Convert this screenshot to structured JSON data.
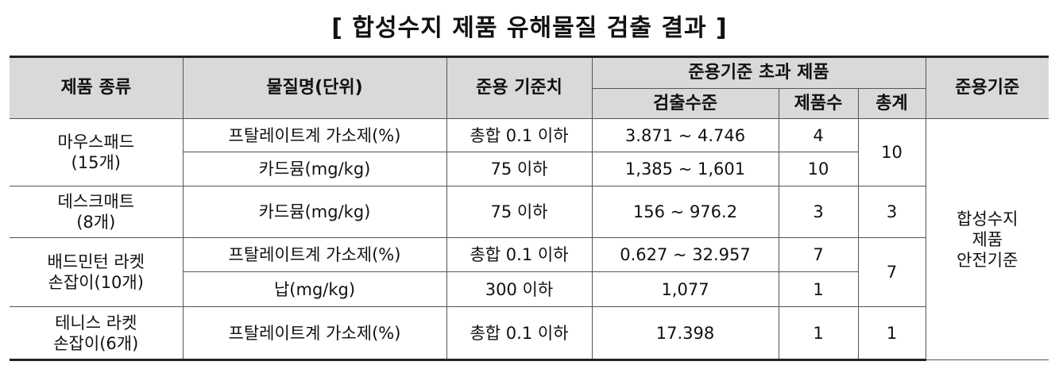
{
  "title": "[ 합성수지 제품 유해물질 검출 결과 ]",
  "table": {
    "header": {
      "product": "제품 종류",
      "substance": "물질명(단위)",
      "standard_value": "준용 기준치",
      "exceed_group": "준용기준 초과 제품",
      "detected": "검출수준",
      "count": "제품수",
      "total": "총계",
      "standard": "준용기준"
    },
    "standard": [
      "합성수지",
      "제품",
      "안전기준"
    ],
    "groups": [
      {
        "product": [
          "마우스패드",
          "(15개)"
        ],
        "total": "10",
        "rows": [
          {
            "substance": "프탈레이트계 가소제(%)",
            "standard_value": "총합 0.1 이하",
            "detected": "3.871 ~ 4.746",
            "count": "4"
          },
          {
            "substance": "카드뮴(mg/kg)",
            "standard_value": "75 이하",
            "detected": "1,385 ~ 1,601",
            "count": "10"
          }
        ]
      },
      {
        "product": [
          "데스크매트",
          "(8개)"
        ],
        "total": "3",
        "rows": [
          {
            "substance": "카드뮴(mg/kg)",
            "standard_value": "75 이하",
            "detected": "156 ~ 976.2",
            "count": "3"
          }
        ]
      },
      {
        "product": [
          "배드민턴 라켓",
          "손잡이(10개)"
        ],
        "total": "7",
        "rows": [
          {
            "substance": "프탈레이트계 가소제(%)",
            "standard_value": "총합 0.1 이하",
            "detected": "0.627 ~ 32.957",
            "count": "7"
          },
          {
            "substance": "납(mg/kg)",
            "standard_value": "300 이하",
            "detected": "1,077",
            "count": "1"
          }
        ]
      },
      {
        "product": [
          "테니스 라켓",
          "손잡이(6개)"
        ],
        "total": "1",
        "rows": [
          {
            "substance": "프탈레이트계 가소제(%)",
            "standard_value": "총합 0.1 이하",
            "detected": "17.398",
            "count": "1"
          }
        ]
      }
    ]
  }
}
